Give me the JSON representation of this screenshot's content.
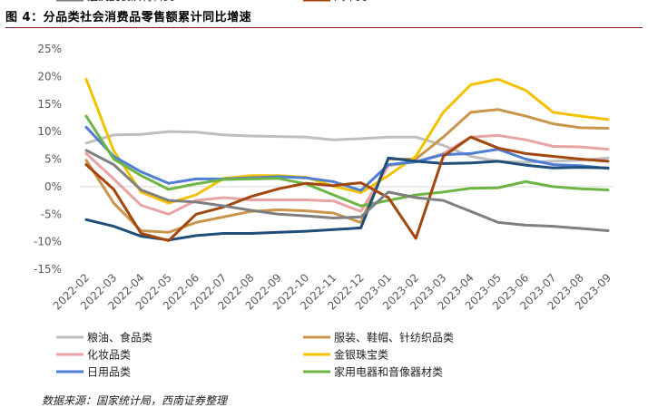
{
  "figure": {
    "title": "图 4：分品类社会消费品零售额累计同比增速",
    "source": "数据来源：国家统计局，西南证券整理"
  },
  "chart_data": {
    "type": "line",
    "title": "分品类社会消费品零售额累计同比增速",
    "xlabel": "",
    "ylabel": "",
    "ylim": [
      -15,
      25
    ],
    "yticks": [
      25,
      20,
      15,
      10,
      5,
      0,
      -5,
      -10,
      -15
    ],
    "ytick_labels": [
      "25%",
      "20%",
      "15%",
      "10%",
      "5%",
      "0%",
      "-5%",
      "-10%",
      "-15%"
    ],
    "grid": false,
    "legend_position": "bottom",
    "categories": [
      "2022-02",
      "2022-03",
      "2022-04",
      "2022-05",
      "2022-06",
      "2022-07",
      "2022-08",
      "2022-09",
      "2022-10",
      "2022-11",
      "2022-12",
      "2023-01",
      "2023-02",
      "2023-03",
      "2023-04",
      "2023-05",
      "2023-06",
      "2023-07",
      "2023-08",
      "2023-09"
    ],
    "series": [
      {
        "name": "粮油、食品类",
        "color": "#bfbfbf",
        "values": [
          7.9,
          9.4,
          9.5,
          10.0,
          9.9,
          9.4,
          9.2,
          9.1,
          9.0,
          8.5,
          8.7,
          9.0,
          9.0,
          7.5,
          5.5,
          4.6,
          4.4,
          4.6,
          4.8,
          5.2
        ]
      },
      {
        "name": "服装、鞋帽、针纺织品类",
        "color": "#c9954d",
        "values": [
          4.8,
          -3.0,
          -8.0,
          -8.3,
          -6.5,
          -5.5,
          -4.5,
          -4.2,
          -4.4,
          -4.8,
          -6.5,
          5.0,
          5.0,
          9.0,
          13.5,
          14.0,
          12.8,
          11.4,
          10.7,
          10.6
        ]
      },
      {
        "name": "化妆品类",
        "color": "#e8a4a4",
        "values": [
          6.0,
          1.4,
          -3.4,
          -5.0,
          -2.5,
          -2.0,
          -2.4,
          -2.4,
          -2.4,
          -2.6,
          -4.5,
          3.8,
          4.5,
          6.0,
          9.0,
          9.3,
          8.5,
          7.3,
          7.2,
          6.8
        ]
      },
      {
        "name": "金银珠宝类",
        "color": "#f2c200",
        "values": [
          19.5,
          6.5,
          -1.0,
          -3.0,
          -1.5,
          1.5,
          2.0,
          2.0,
          1.7,
          0.1,
          -1.1,
          2.0,
          5.5,
          13.5,
          18.5,
          19.5,
          17.5,
          13.5,
          12.8,
          12.2
        ]
      },
      {
        "name": "日用品类",
        "color": "#4f7ed4",
        "values": [
          10.8,
          5.5,
          2.7,
          0.6,
          1.4,
          1.4,
          1.6,
          1.8,
          1.6,
          0.9,
          -0.7,
          4.0,
          4.5,
          5.8,
          6.0,
          6.8,
          5.0,
          4.0,
          3.8,
          3.3
        ]
      },
      {
        "name": "家用电器和音像器材类",
        "color": "#6db545",
        "values": [
          12.8,
          5.0,
          2.0,
          -0.5,
          0.5,
          1.3,
          1.4,
          1.5,
          0.5,
          -1.5,
          -3.5,
          -2.5,
          -1.5,
          -1.0,
          -0.3,
          -0.2,
          0.9,
          0.0,
          -0.4,
          -0.6
        ]
      },
      {
        "name": "家具类",
        "color": "#1f4e79",
        "values": [
          -6.0,
          -7.2,
          -9.0,
          -9.7,
          -8.9,
          -8.5,
          -8.5,
          -8.3,
          -8.1,
          -7.8,
          -7.5,
          5.2,
          4.6,
          4.2,
          4.3,
          4.6,
          3.9,
          3.4,
          3.5,
          3.4
        ]
      },
      {
        "name": "汽车类",
        "color": "#a2470d",
        "values": [
          4.0,
          -0.5,
          -8.5,
          -9.8,
          -5.0,
          -3.7,
          -1.8,
          -0.4,
          0.6,
          0.2,
          0.7,
          -2.0,
          -9.4,
          5.5,
          9.0,
          7.0,
          6.0,
          5.5,
          5.0,
          4.6
        ]
      },
      {
        "name": "建筑及装潢材料类",
        "color": "#7f7f7f",
        "values": [
          6.6,
          4.0,
          -0.6,
          -2.5,
          -2.8,
          -3.5,
          -4.3,
          -5.0,
          -5.3,
          -5.7,
          -5.5,
          -1.0,
          -2.0,
          -2.5,
          -4.5,
          -6.5,
          -7.0,
          -7.2,
          -7.6,
          -8.0
        ]
      }
    ]
  }
}
